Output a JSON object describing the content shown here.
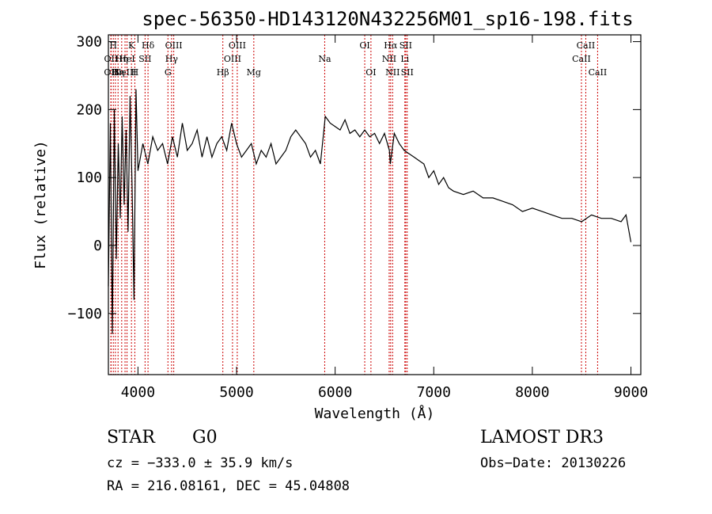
{
  "chart_data": {
    "type": "line",
    "title": "spec-56350-HD143120N432256M01_sp16-198.fits",
    "xlabel": "Wavelength (Å)",
    "ylabel": "Flux (relative)",
    "xlim": [
      3700,
      9100
    ],
    "ylim": [
      -190,
      310
    ],
    "xticks": [
      4000,
      5000,
      6000,
      7000,
      8000,
      9000
    ],
    "yticks": [
      -100,
      0,
      100,
      200,
      300
    ],
    "xtick_labels": [
      "4000",
      "5000",
      "6000",
      "7000",
      "8000",
      "9000"
    ],
    "ytick_labels": [
      "−100",
      "0",
      "100",
      "200",
      "300"
    ],
    "series": [
      {
        "name": "flux",
        "x": [
          3700,
          3720,
          3740,
          3760,
          3780,
          3800,
          3820,
          3840,
          3860,
          3880,
          3900,
          3920,
          3940,
          3960,
          3980,
          4000,
          4050,
          4100,
          4150,
          4200,
          4250,
          4300,
          4350,
          4400,
          4450,
          4500,
          4550,
          4600,
          4650,
          4700,
          4750,
          4800,
          4850,
          4900,
          4950,
          5000,
          5050,
          5100,
          5150,
          5200,
          5250,
          5300,
          5350,
          5400,
          5450,
          5500,
          5550,
          5600,
          5650,
          5700,
          5750,
          5800,
          5850,
          5900,
          5950,
          6000,
          6050,
          6100,
          6150,
          6200,
          6250,
          6300,
          6350,
          6400,
          6450,
          6500,
          6550,
          6560,
          6600,
          6650,
          6700,
          6750,
          6800,
          6850,
          6900,
          6950,
          7000,
          7050,
          7100,
          7150,
          7200,
          7300,
          7400,
          7500,
          7600,
          7700,
          7800,
          7900,
          8000,
          8100,
          8200,
          8300,
          8400,
          8500,
          8600,
          8700,
          8800,
          8900,
          8950,
          9000
        ],
        "y": [
          -60,
          180,
          -130,
          200,
          -20,
          150,
          40,
          190,
          60,
          170,
          20,
          220,
          90,
          -80,
          230,
          110,
          150,
          120,
          160,
          140,
          150,
          120,
          160,
          130,
          180,
          140,
          150,
          170,
          130,
          160,
          130,
          150,
          160,
          140,
          180,
          150,
          130,
          140,
          150,
          120,
          140,
          130,
          150,
          120,
          130,
          140,
          160,
          170,
          160,
          150,
          130,
          140,
          120,
          190,
          180,
          175,
          170,
          185,
          165,
          170,
          160,
          170,
          160,
          165,
          150,
          165,
          140,
          120,
          165,
          150,
          140,
          135,
          130,
          125,
          120,
          100,
          110,
          90,
          100,
          85,
          80,
          75,
          80,
          70,
          70,
          65,
          60,
          50,
          55,
          50,
          45,
          40,
          40,
          35,
          45,
          40,
          40,
          35,
          45,
          5
        ]
      }
    ],
    "lines": [
      {
        "wave": 3726,
        "label": "OII",
        "row": 2
      },
      {
        "wave": 3727,
        "label": "OII",
        "row": 1
      },
      {
        "wave": 3750,
        "label": "H",
        "row": 0
      },
      {
        "wave": 3771,
        "label": "H",
        "row": 2
      },
      {
        "wave": 3798,
        "label": "Hη",
        "row": 2
      },
      {
        "wave": 3835,
        "label": "Hη",
        "row": 1
      },
      {
        "wave": 3869,
        "label": "NeIII",
        "row": 2
      },
      {
        "wave": 3889,
        "label": "HeI",
        "row": 1
      },
      {
        "wave": 3934,
        "label": "K",
        "row": 0
      },
      {
        "wave": 3968,
        "label": "H",
        "row": 2
      },
      {
        "wave": 4072,
        "label": "SII",
        "row": 1
      },
      {
        "wave": 4102,
        "label": "Hδ",
        "row": 0
      },
      {
        "wave": 4304,
        "label": "G",
        "row": 2
      },
      {
        "wave": 4341,
        "label": "Hγ",
        "row": 1
      },
      {
        "wave": 4363,
        "label": "OIII",
        "row": 0
      },
      {
        "wave": 4861,
        "label": "Hβ",
        "row": 2
      },
      {
        "wave": 4959,
        "label": "OIII",
        "row": 1
      },
      {
        "wave": 5007,
        "label": "OIII",
        "row": 0
      },
      {
        "wave": 5175,
        "label": "Mg",
        "row": 2
      },
      {
        "wave": 5894,
        "label": "Na",
        "row": 1
      },
      {
        "wave": 6300,
        "label": "OI",
        "row": 0
      },
      {
        "wave": 6363,
        "label": "OI",
        "row": 2
      },
      {
        "wave": 6548,
        "label": "NII",
        "row": 1
      },
      {
        "wave": 6563,
        "label": "Hα",
        "row": 0
      },
      {
        "wave": 6583,
        "label": "NII",
        "row": 2
      },
      {
        "wave": 6707,
        "label": "Li",
        "row": 1
      },
      {
        "wave": 6716,
        "label": "SII",
        "row": 0
      },
      {
        "wave": 6731,
        "label": "SII",
        "row": 2
      },
      {
        "wave": 8498,
        "label": "CaII",
        "row": 1
      },
      {
        "wave": 8542,
        "label": "CaII",
        "row": 0
      },
      {
        "wave": 8662,
        "label": "CaII",
        "row": 2
      }
    ]
  },
  "info": {
    "object_class": "STAR",
    "subclass": "G0",
    "survey": "LAMOST DR3",
    "cz": "cz = −333.0 ± 35.9 km/s",
    "obs_date": "Obs−Date: 20130226",
    "coords": "RA = 216.08161, DEC =  45.04808"
  },
  "colors": {
    "line_marker": "#cc0000",
    "spectrum": "#000000"
  }
}
